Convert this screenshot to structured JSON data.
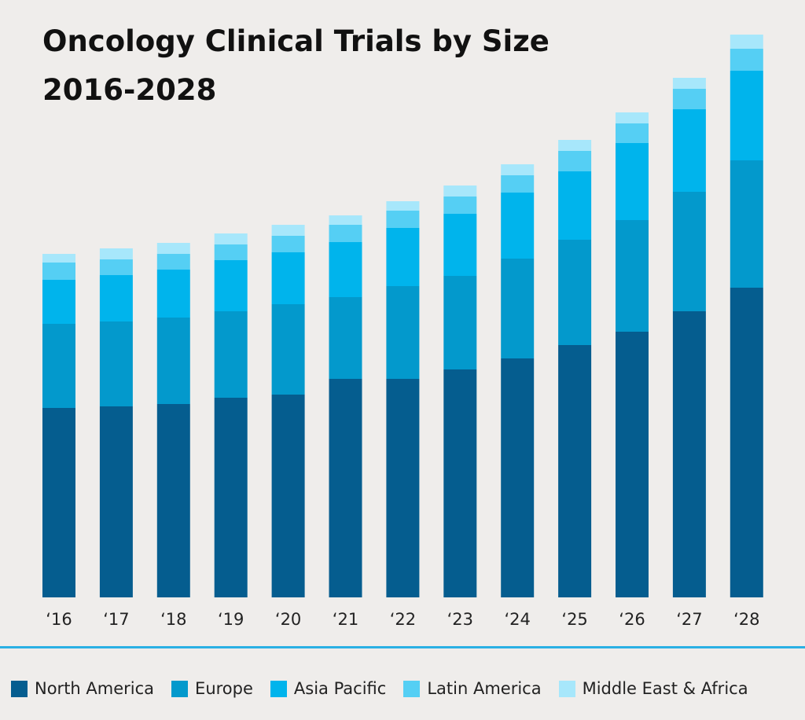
{
  "title": {
    "line1": "Oncology Clinical Trials by Size",
    "line2": "2016-2028"
  },
  "colors": {
    "north_america": "#055d8f",
    "europe": "#0399cc",
    "asia_pacific": "#00b4ec",
    "latin_america": "#55cff4",
    "middle_east_africa": "#a7e7fb",
    "divider": "#2bb0e4"
  },
  "chart_data": {
    "type": "bar",
    "stacked": true,
    "title": "Oncology Clinical Trials by Size 2016-2028",
    "categories": [
      "‘16",
      "‘17",
      "‘18",
      "‘19",
      "‘20",
      "‘21",
      "‘22",
      "‘23",
      "‘24",
      "‘25",
      "‘26",
      "‘27",
      "‘28"
    ],
    "series": [
      {
        "name": "North America",
        "color": "#055d8f",
        "values": [
          241,
          243,
          246,
          254,
          258,
          278,
          278,
          290,
          304,
          321,
          338,
          364,
          394
        ]
      },
      {
        "name": "Europe",
        "color": "#0399cc",
        "values": [
          107,
          108,
          110,
          110,
          115,
          104,
          118,
          119,
          127,
          134,
          142,
          152,
          162
        ]
      },
      {
        "name": "Asia Pacific",
        "color": "#00b4ec",
        "values": [
          56,
          59,
          61,
          65,
          66,
          70,
          74,
          79,
          84,
          87,
          98,
          105,
          114
        ]
      },
      {
        "name": "Latin America",
        "color": "#55cff4",
        "values": [
          22,
          20,
          20,
          20,
          21,
          22,
          22,
          22,
          22,
          26,
          25,
          26,
          28
        ]
      },
      {
        "name": "Middle East & Africa",
        "color": "#a7e7fb",
        "values": [
          11,
          14,
          14,
          14,
          14,
          12,
          12,
          14,
          14,
          14,
          14,
          14,
          18
        ]
      }
    ],
    "ylim": [
      0,
      720
    ],
    "grid": false,
    "legend": "bottom"
  }
}
